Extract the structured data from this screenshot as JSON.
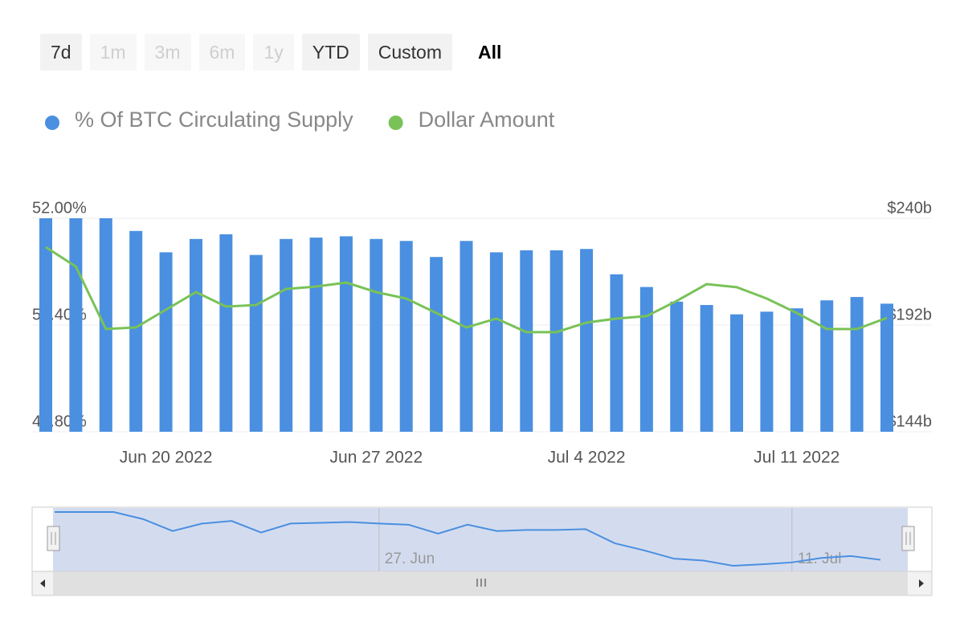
{
  "range_selector": [
    {
      "label": "7d",
      "enabled": true,
      "selected": false
    },
    {
      "label": "1m",
      "enabled": false,
      "selected": false
    },
    {
      "label": "3m",
      "enabled": false,
      "selected": false
    },
    {
      "label": "6m",
      "enabled": false,
      "selected": false
    },
    {
      "label": "1y",
      "enabled": false,
      "selected": false
    },
    {
      "label": "YTD",
      "enabled": true,
      "selected": false
    },
    {
      "label": "Custom",
      "enabled": true,
      "selected": false
    },
    {
      "label": "All",
      "enabled": true,
      "selected": true
    }
  ],
  "chart_data": {
    "type": "bar-line",
    "x": [
      "2022-06-16",
      "2022-06-17",
      "2022-06-18",
      "2022-06-19",
      "2022-06-20",
      "2022-06-21",
      "2022-06-22",
      "2022-06-23",
      "2022-06-24",
      "2022-06-25",
      "2022-06-26",
      "2022-06-27",
      "2022-06-28",
      "2022-06-29",
      "2022-06-30",
      "2022-07-01",
      "2022-07-02",
      "2022-07-03",
      "2022-07-04",
      "2022-07-05",
      "2022-07-06",
      "2022-07-07",
      "2022-07-08",
      "2022-07-09",
      "2022-07-10",
      "2022-07-11",
      "2022-07-12",
      "2022-07-13",
      "2022-07-14"
    ],
    "xticks": [
      {
        "value": "2022-06-20",
        "label": "Jun 20 2022"
      },
      {
        "value": "2022-06-27",
        "label": "Jun 27 2022"
      },
      {
        "value": "2022-07-04",
        "label": "Jul 4 2022"
      },
      {
        "value": "2022-07-11",
        "label": "Jul 11 2022"
      }
    ],
    "ylim": [
      48.8,
      52
    ],
    "yticks": [
      {
        "value": 48.8,
        "label": "48.80%"
      },
      {
        "value": 50.4,
        "label": "50.40%"
      },
      {
        "value": 52,
        "label": "52.00%"
      }
    ],
    "y2lim": [
      144,
      240
    ],
    "y2ticks": [
      {
        "value": 144,
        "label": "$144b"
      },
      {
        "value": 192,
        "label": "$192b"
      },
      {
        "value": 240,
        "label": "$240b"
      }
    ],
    "grid": true,
    "series": [
      {
        "name": "% Of BTC Circulating Supply",
        "type": "bar",
        "color": "#4a8fe0",
        "values": [
          52.0,
          52.0,
          52.0,
          51.81,
          51.49,
          51.69,
          51.76,
          51.45,
          51.69,
          51.71,
          51.73,
          51.69,
          51.66,
          51.42,
          51.66,
          51.49,
          51.52,
          51.52,
          51.54,
          51.16,
          50.97,
          50.75,
          50.7,
          50.56,
          50.6,
          50.65,
          50.77,
          50.82,
          50.72
        ]
      },
      {
        "name": "Dollar Amount",
        "type": "line",
        "axis": "y2",
        "color": "#79c257",
        "values": [
          227.0,
          218.3,
          190.2,
          190.9,
          198.9,
          206.8,
          200.3,
          201.0,
          208.2,
          209.3,
          211.1,
          206.8,
          203.9,
          197.4,
          190.9,
          194.9,
          188.8,
          188.8,
          193.1,
          194.9,
          196.0,
          202.8,
          210.4,
          209.0,
          203.9,
          197.4,
          190.2,
          190.2,
          195.2
        ]
      }
    ],
    "navigator": {
      "xticks": [
        {
          "value": "2022-06-27",
          "label": "27. Jun"
        },
        {
          "value": "2022-07-11",
          "label": "11. Jul"
        }
      ]
    }
  }
}
